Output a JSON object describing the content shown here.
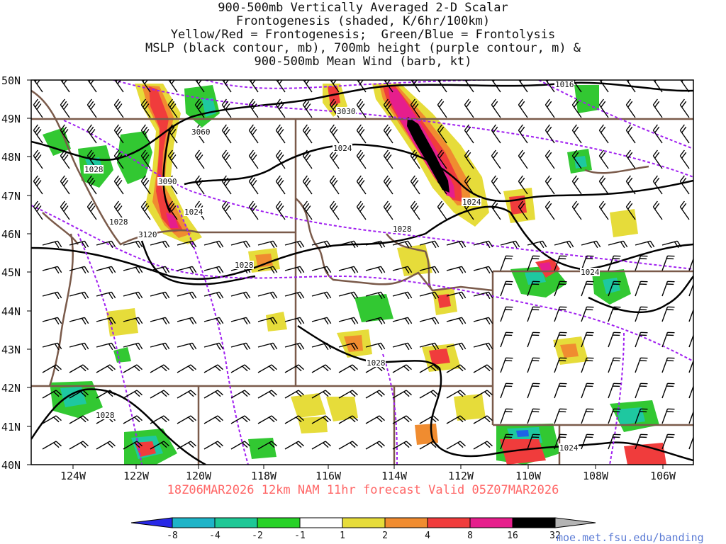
{
  "title_lines": [
    "900-500mb Vertically Averaged 2-D Scalar",
    "Frontogenesis (shaded, K/6hr/100km)",
    "Yellow/Red = Frontogenesis;  Green/Blue = Frontolysis",
    "MSLP (black contour, mb), 700mb height (purple contour, m) &",
    "900-500mb Mean Wind (barb, kt)"
  ],
  "map": {
    "lat_labels": [
      "50N",
      "49N",
      "48N",
      "47N",
      "46N",
      "45N",
      "44N",
      "43N",
      "42N",
      "41N",
      "40N"
    ],
    "lon_labels": [
      "124W",
      "122W",
      "120W",
      "118W",
      "116W",
      "114W",
      "112W",
      "110W",
      "108W",
      "106W"
    ],
    "mslp_labels": [
      "1016",
      "1024",
      "1024",
      "1024",
      "1024",
      "1028",
      "1028",
      "1028",
      "1028",
      "1028",
      "1028",
      "1024"
    ],
    "height_labels": [
      "3030",
      "3060",
      "3090",
      "3120"
    ],
    "colors": {
      "mslp": "#000000",
      "height": "#a020f0",
      "borders": "#7a5a4a",
      "front_yellow": "#e6dc3a",
      "front_orange": "#f08c30",
      "front_red": "#f03c3c",
      "front_magenta": "#e61e8c",
      "front_black": "#000000",
      "lysis_green": "#32c832",
      "lysis_teal": "#1ec8a0",
      "lysis_blue": "#1e64e6"
    }
  },
  "valid_time": "18Z06MAR2026 12km NAM 11hr forecast Valid 05Z07MAR2026",
  "colorbar": {
    "labels": [
      "-8",
      "-4",
      "-2",
      "-1",
      "1",
      "2",
      "4",
      "8",
      "16",
      "32"
    ],
    "colors": [
      "#2828e6",
      "#1eb4c8",
      "#1ec896",
      "#28d228",
      "#ffffff",
      "#e6dc3a",
      "#f08c30",
      "#f03c3c",
      "#e61e8c",
      "#000000",
      "#b4b4b4"
    ]
  },
  "credit": "moe.met.fsu.edu/banding"
}
